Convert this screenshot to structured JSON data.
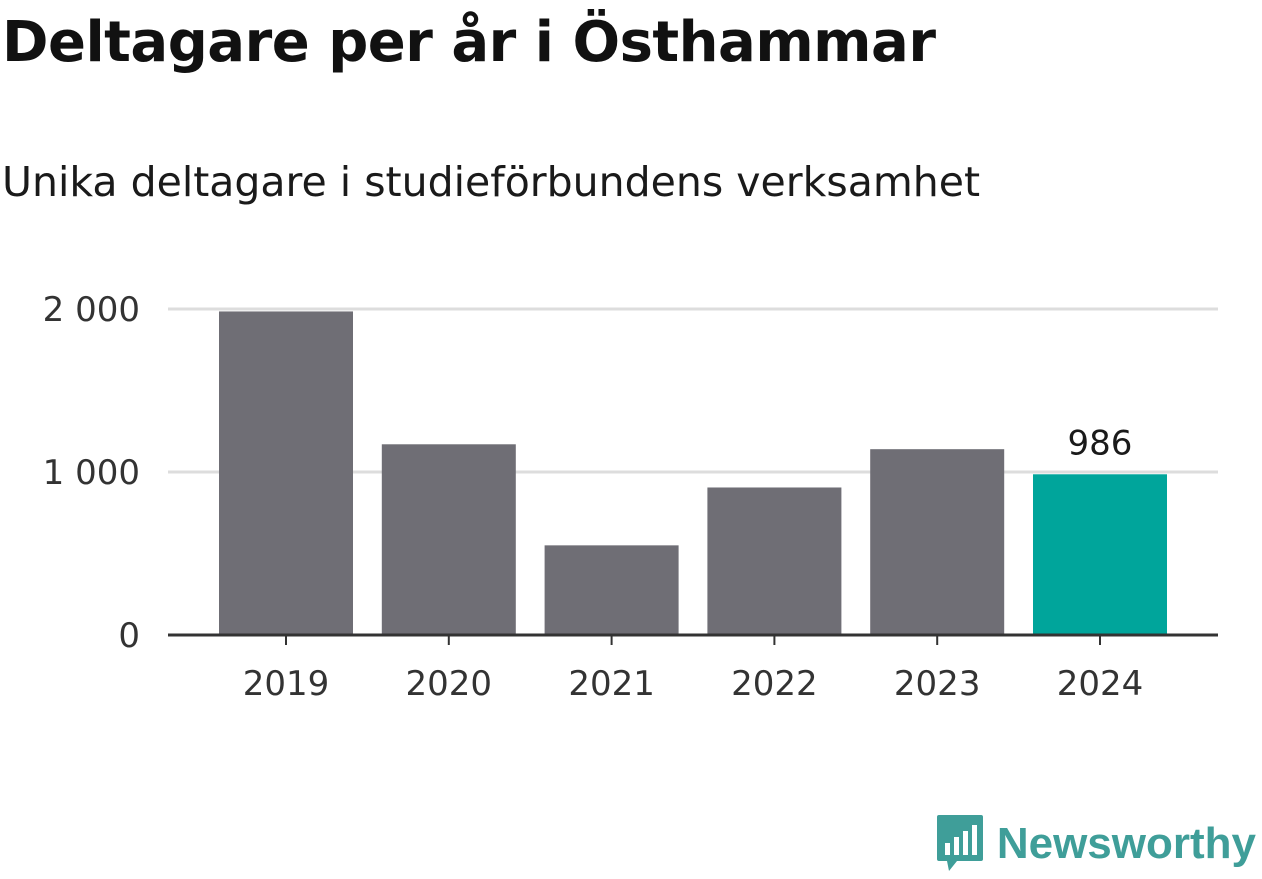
{
  "title": "Deltagare per år i Östhammar",
  "subtitle": "Unika deltagare i studieförbundens verksamhet",
  "brand": {
    "name": "Newsworthy",
    "icon": "bar-chart-speech-bubble-icon",
    "color": "#3f9e99"
  },
  "chart_data": {
    "type": "bar",
    "categories": [
      "2019",
      "2020",
      "2021",
      "2022",
      "2023",
      "2024"
    ],
    "values": [
      1985,
      1170,
      550,
      905,
      1140,
      986
    ],
    "highlight_index": 5,
    "highlight_label": "986",
    "ylim": [
      0,
      2000
    ],
    "yticks": [
      {
        "value": 0,
        "label": "0"
      },
      {
        "value": 1000,
        "label": "1 000"
      },
      {
        "value": 2000,
        "label": "2 000"
      }
    ],
    "grid": true,
    "colors": {
      "bar": "#6f6e75",
      "highlight": "#00a59b",
      "grid": "#dddddd",
      "axis": "#333333"
    }
  }
}
